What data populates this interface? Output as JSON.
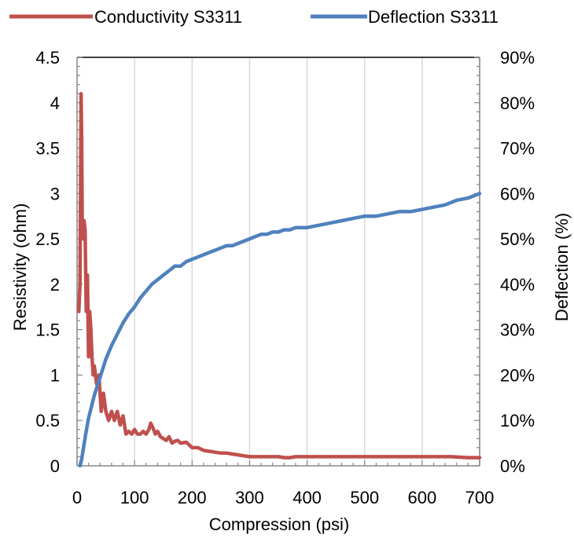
{
  "chart_data": {
    "type": "line",
    "xlabel": "Compression (psi)",
    "ylabel": "Resistivity (ohm)",
    "y2label": "Deflection (%)",
    "xlim": [
      0,
      700
    ],
    "ylim": [
      0,
      4.5
    ],
    "y2lim": [
      0,
      90
    ],
    "x_ticks": [
      "0",
      "100",
      "200",
      "300",
      "400",
      "500",
      "600",
      "700"
    ],
    "y_ticks": [
      "0",
      "0.5",
      "1",
      "1.5",
      "2",
      "2.5",
      "3",
      "3.5",
      "4",
      "4.5"
    ],
    "y2_ticks": [
      "0%",
      "10%",
      "20%",
      "30%",
      "40%",
      "50%",
      "60%",
      "70%",
      "80%",
      "90%"
    ],
    "grid": "vertical",
    "legend_position": "top",
    "series": [
      {
        "name": "Conductivity S3311",
        "axis": "left",
        "color": "#c0504d",
        "x": [
          3,
          5,
          7,
          8,
          9,
          10,
          12,
          14,
          16,
          18,
          20,
          22,
          24,
          26,
          28,
          30,
          34,
          38,
          42,
          46,
          50,
          55,
          60,
          65,
          70,
          75,
          80,
          85,
          90,
          95,
          100,
          105,
          110,
          115,
          120,
          125,
          128,
          132,
          136,
          140,
          145,
          150,
          155,
          160,
          165,
          170,
          175,
          180,
          190,
          200,
          210,
          220,
          230,
          240,
          250,
          260,
          270,
          280,
          290,
          300,
          320,
          340,
          350,
          360,
          370,
          380,
          400,
          450,
          500,
          550,
          600,
          650,
          680,
          700
        ],
        "y": [
          1.7,
          2.0,
          4.1,
          3.6,
          2.6,
          2.5,
          2.7,
          2.6,
          1.7,
          2.1,
          1.2,
          1.7,
          1.5,
          1.2,
          1.0,
          1.1,
          0.9,
          1.0,
          0.6,
          0.8,
          0.6,
          0.5,
          0.6,
          0.5,
          0.6,
          0.45,
          0.55,
          0.35,
          0.38,
          0.35,
          0.4,
          0.35,
          0.35,
          0.38,
          0.35,
          0.4,
          0.47,
          0.42,
          0.35,
          0.38,
          0.32,
          0.3,
          0.28,
          0.32,
          0.25,
          0.27,
          0.28,
          0.25,
          0.26,
          0.2,
          0.2,
          0.17,
          0.16,
          0.15,
          0.14,
          0.14,
          0.13,
          0.12,
          0.11,
          0.1,
          0.1,
          0.1,
          0.1,
          0.09,
          0.09,
          0.1,
          0.1,
          0.1,
          0.1,
          0.1,
          0.1,
          0.1,
          0.09,
          0.09
        ]
      },
      {
        "name": "Deflection S3311",
        "axis": "right",
        "color": "#4f81bd",
        "x": [
          5,
          8,
          10,
          15,
          20,
          25,
          30,
          40,
          50,
          60,
          70,
          80,
          90,
          100,
          110,
          120,
          130,
          140,
          150,
          160,
          170,
          180,
          190,
          200,
          210,
          220,
          230,
          240,
          250,
          260,
          270,
          280,
          290,
          300,
          310,
          320,
          330,
          340,
          350,
          360,
          370,
          380,
          390,
          400,
          420,
          440,
          460,
          480,
          500,
          520,
          540,
          560,
          580,
          600,
          620,
          640,
          660,
          680,
          700
        ],
        "y": [
          0,
          1.5,
          3,
          7,
          10.5,
          13,
          15.5,
          19.5,
          23.5,
          26.5,
          29,
          31.5,
          33.5,
          35,
          37,
          38.5,
          40,
          41,
          42,
          43,
          44,
          44,
          45,
          45.5,
          46,
          46.5,
          47,
          47.5,
          48,
          48.5,
          48.5,
          49,
          49.5,
          50,
          50.5,
          51,
          51,
          51.5,
          51.5,
          52,
          52,
          52.5,
          52.5,
          52.5,
          53,
          53.5,
          54,
          54.5,
          55,
          55,
          55.5,
          56,
          56,
          56.5,
          57,
          57.5,
          58.5,
          59,
          60
        ]
      }
    ]
  }
}
